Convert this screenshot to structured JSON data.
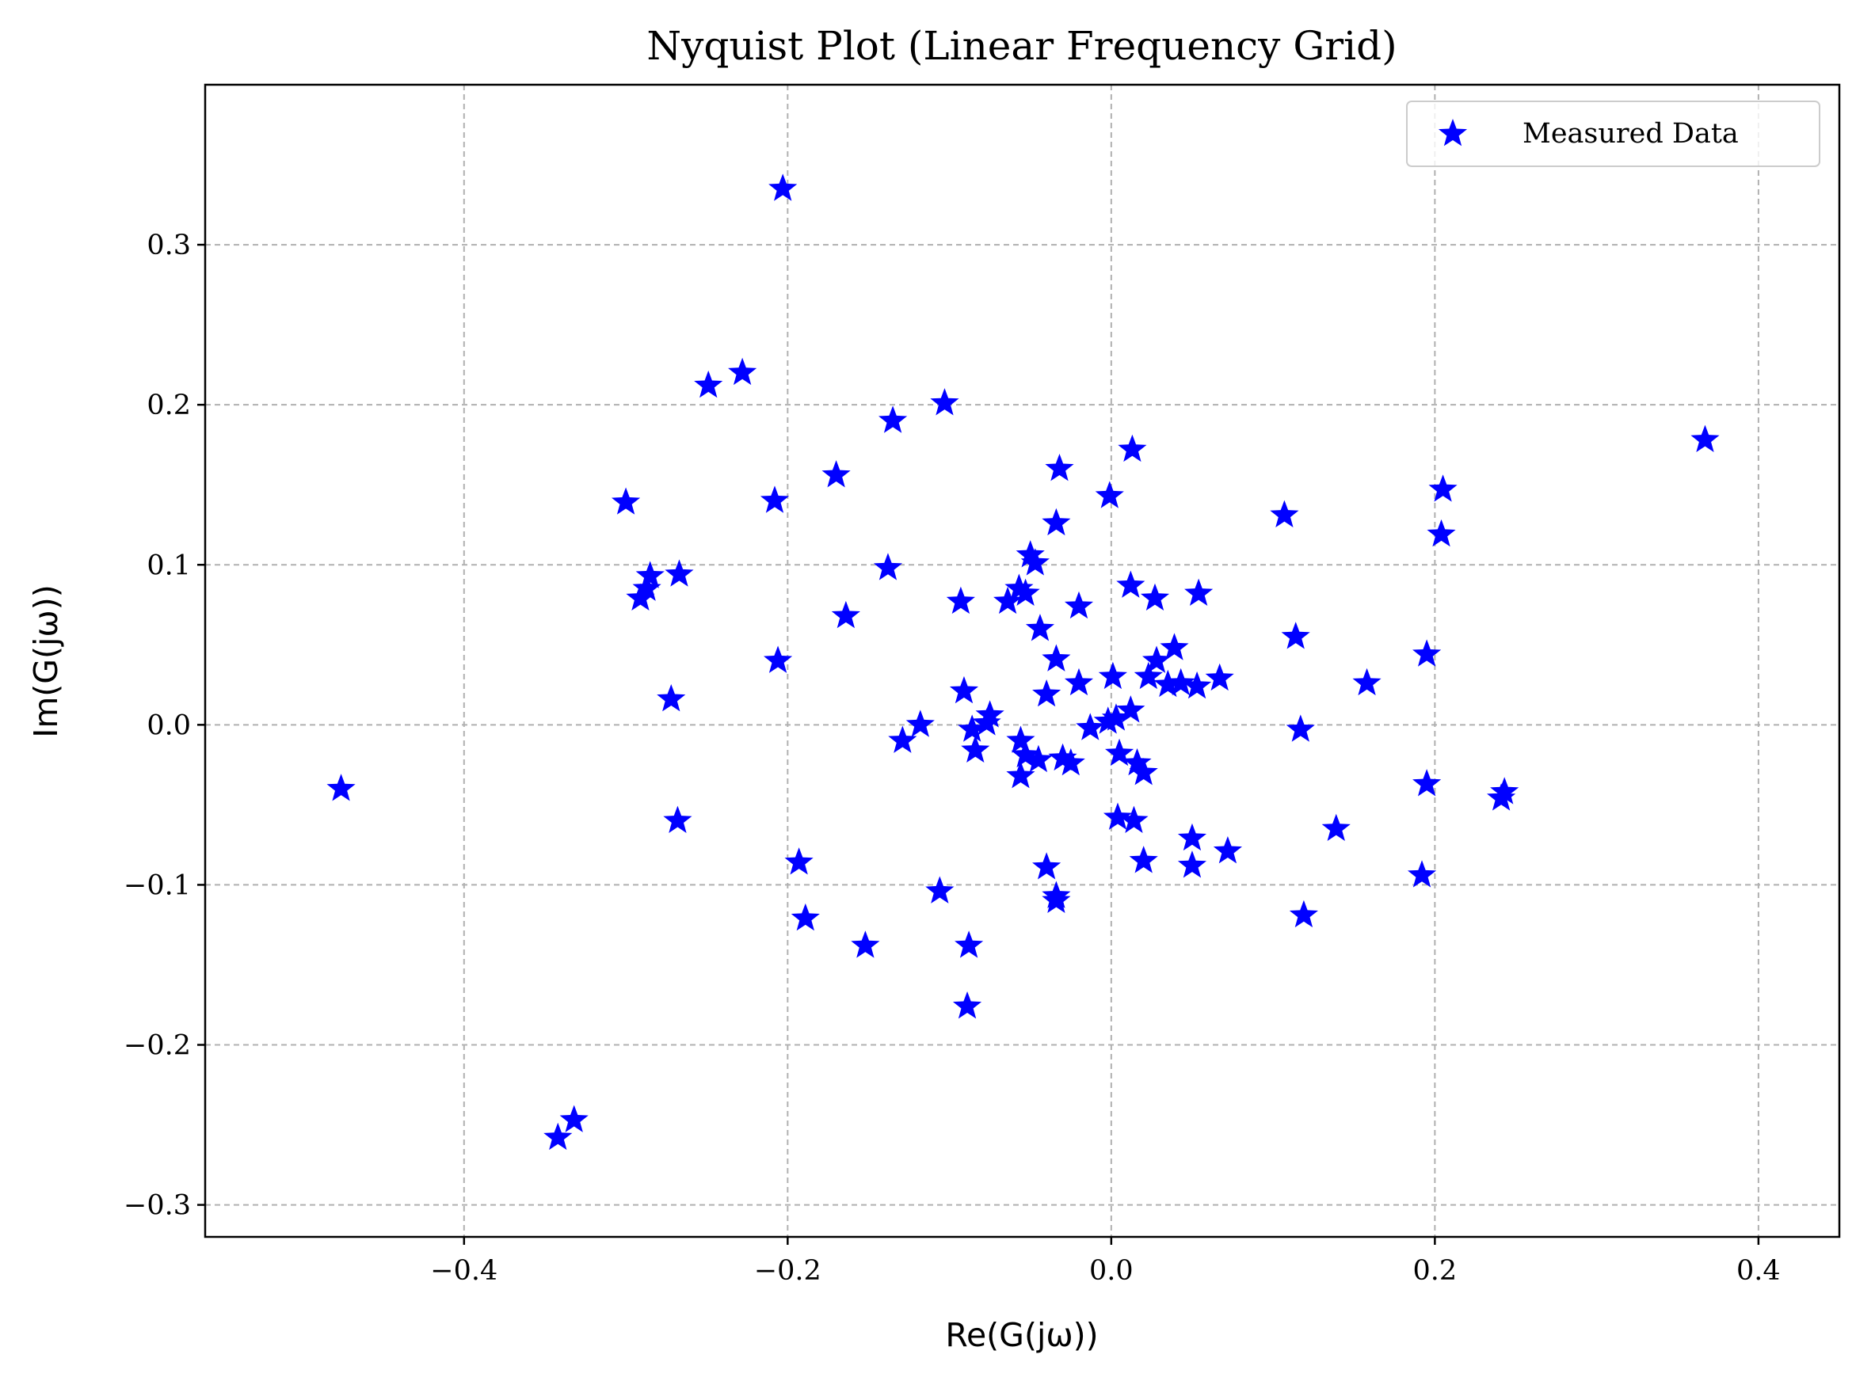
{
  "chart_data": {
    "type": "scatter",
    "title": "Nyquist Plot (Linear Frequency Grid)",
    "xlabel": "Re(G(jω))",
    "ylabel": "Im(G(jω))",
    "xlim": [
      -0.56,
      0.45
    ],
    "ylim": [
      -0.32,
      0.4
    ],
    "xticks": [
      -0.4,
      -0.2,
      0.0,
      0.2,
      0.4
    ],
    "xtick_labels": [
      "−0.4",
      "−0.2",
      "0.0",
      "0.2",
      "0.4"
    ],
    "yticks": [
      -0.3,
      -0.2,
      -0.1,
      0.0,
      0.1,
      0.2,
      0.3
    ],
    "ytick_labels": [
      "−0.3",
      "−0.2",
      "−0.1",
      "0.0",
      "0.1",
      "0.2",
      "0.3"
    ],
    "grid": true,
    "legend_position": "top-right",
    "color": "#0000ff",
    "marker": "star",
    "series": [
      {
        "name": "Measured Data",
        "points": [
          [
            -0.203,
            0.335
          ],
          [
            -0.228,
            0.22
          ],
          [
            -0.249,
            0.212
          ],
          [
            -0.103,
            0.201
          ],
          [
            -0.135,
            0.19
          ],
          [
            0.013,
            0.172
          ],
          [
            0.367,
            0.178
          ],
          [
            -0.17,
            0.156
          ],
          [
            -0.032,
            0.16
          ],
          [
            0.205,
            0.147
          ],
          [
            -0.001,
            0.143
          ],
          [
            -0.208,
            0.14
          ],
          [
            -0.3,
            0.139
          ],
          [
            0.107,
            0.131
          ],
          [
            -0.034,
            0.126
          ],
          [
            0.204,
            0.119
          ],
          [
            -0.05,
            0.106
          ],
          [
            -0.047,
            0.101
          ],
          [
            -0.138,
            0.098
          ],
          [
            -0.267,
            0.094
          ],
          [
            -0.285,
            0.093
          ],
          [
            -0.287,
            0.085
          ],
          [
            -0.291,
            0.079
          ],
          [
            0.012,
            0.087
          ],
          [
            -0.057,
            0.085
          ],
          [
            -0.053,
            0.082
          ],
          [
            -0.064,
            0.077
          ],
          [
            -0.093,
            0.077
          ],
          [
            0.027,
            0.079
          ],
          [
            0.054,
            0.082
          ],
          [
            -0.02,
            0.074
          ],
          [
            -0.164,
            0.068
          ],
          [
            -0.044,
            0.06
          ],
          [
            0.114,
            0.055
          ],
          [
            -0.206,
            0.04
          ],
          [
            -0.034,
            0.041
          ],
          [
            0.039,
            0.048
          ],
          [
            0.028,
            0.04
          ],
          [
            0.195,
            0.044
          ],
          [
            0.023,
            0.03
          ],
          [
            0.001,
            0.03
          ],
          [
            -0.02,
            0.026
          ],
          [
            0.035,
            0.025
          ],
          [
            0.043,
            0.026
          ],
          [
            0.053,
            0.024
          ],
          [
            0.067,
            0.029
          ],
          [
            0.158,
            0.026
          ],
          [
            -0.091,
            0.021
          ],
          [
            -0.04,
            0.019
          ],
          [
            -0.272,
            0.016
          ],
          [
            -0.075,
            0.006
          ],
          [
            -0.077,
            0.001
          ],
          [
            -0.086,
            -0.003
          ],
          [
            -0.118,
            0.0
          ],
          [
            0.012,
            0.009
          ],
          [
            0.003,
            0.004
          ],
          [
            -0.002,
            0.002
          ],
          [
            -0.013,
            -0.002
          ],
          [
            0.117,
            -0.003
          ],
          [
            -0.129,
            -0.01
          ],
          [
            -0.056,
            -0.01
          ],
          [
            -0.084,
            -0.016
          ],
          [
            -0.053,
            -0.019
          ],
          [
            -0.045,
            -0.022
          ],
          [
            -0.03,
            -0.021
          ],
          [
            -0.025,
            -0.024
          ],
          [
            0.005,
            -0.018
          ],
          [
            0.016,
            -0.024
          ],
          [
            0.02,
            -0.03
          ],
          [
            -0.056,
            -0.032
          ],
          [
            -0.476,
            -0.04
          ],
          [
            0.195,
            -0.037
          ],
          [
            0.243,
            -0.042
          ],
          [
            0.241,
            -0.046
          ],
          [
            -0.268,
            -0.06
          ],
          [
            0.004,
            -0.058
          ],
          [
            0.014,
            -0.06
          ],
          [
            0.139,
            -0.065
          ],
          [
            0.05,
            -0.071
          ],
          [
            0.072,
            -0.079
          ],
          [
            0.02,
            -0.085
          ],
          [
            0.05,
            -0.088
          ],
          [
            -0.193,
            -0.086
          ],
          [
            -0.04,
            -0.089
          ],
          [
            -0.106,
            -0.104
          ],
          [
            -0.034,
            -0.107
          ],
          [
            -0.034,
            -0.11
          ],
          [
            0.192,
            -0.094
          ],
          [
            0.119,
            -0.119
          ],
          [
            -0.189,
            -0.121
          ],
          [
            -0.152,
            -0.138
          ],
          [
            -0.088,
            -0.138
          ],
          [
            -0.089,
            -0.176
          ],
          [
            -0.332,
            -0.247
          ],
          [
            -0.342,
            -0.258
          ]
        ]
      }
    ]
  }
}
